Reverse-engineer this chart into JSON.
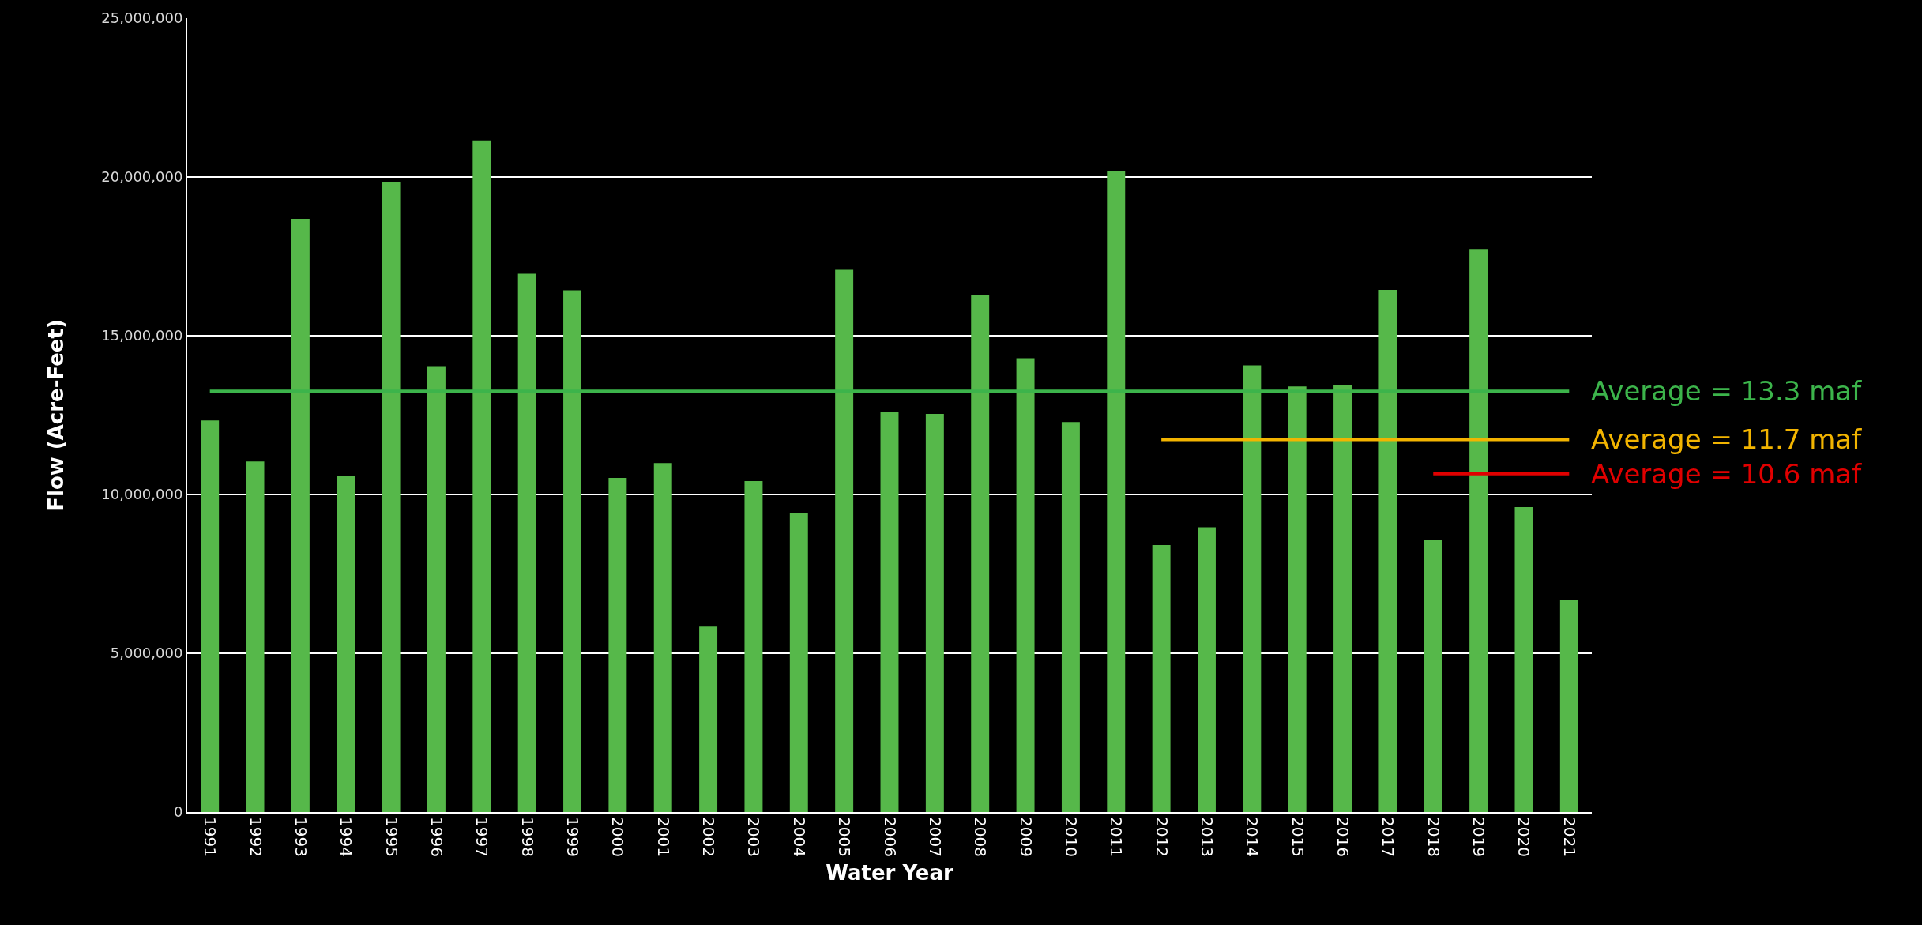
{
  "chart_data": {
    "type": "bar",
    "xlabel": "Water Year",
    "ylabel": "Flow (Acre-Feet)",
    "categories": [
      "1991",
      "1992",
      "1993",
      "1994",
      "1995",
      "1996",
      "1997",
      "1998",
      "1999",
      "2000",
      "2001",
      "2002",
      "2003",
      "2004",
      "2005",
      "2006",
      "2007",
      "2008",
      "2009",
      "2010",
      "2011",
      "2012",
      "2013",
      "2014",
      "2015",
      "2016",
      "2017",
      "2018",
      "2019",
      "2020",
      "2021"
    ],
    "series": [
      {
        "color": "#56b84a",
        "values": [
          12330000,
          11040000,
          18680000,
          10570000,
          19850000,
          14040000,
          21150000,
          16950000,
          16430000,
          10520000,
          10990000,
          5840000,
          10420000,
          9430000,
          17080000,
          12610000,
          12540000,
          16290000,
          14290000,
          12280000,
          20190000,
          8410000,
          8970000,
          14070000,
          13400000,
          13460000,
          16440000,
          8570000,
          17730000,
          9600000,
          6670000
        ]
      },
      {
        "type": "line",
        "name": "Average = 13.3 maf",
        "color": "#3cb44b",
        "values": [
          13250000,
          13250000,
          13250000,
          13250000,
          13250000,
          13250000,
          13250000,
          13250000,
          13250000,
          13250000,
          13250000,
          13250000,
          13250000,
          13250000,
          13250000,
          13250000,
          13250000,
          13250000,
          13250000,
          13250000,
          13250000,
          13250000,
          13250000,
          13250000,
          13250000,
          13250000,
          13250000,
          13250000,
          13250000,
          13250000,
          13250000
        ]
      },
      {
        "type": "line",
        "name": "Average = 11.7 maf",
        "color": "#f2b400",
        "values": [
          null,
          null,
          null,
          null,
          null,
          null,
          null,
          null,
          null,
          null,
          null,
          null,
          null,
          null,
          null,
          null,
          null,
          null,
          null,
          null,
          null,
          11730000,
          11730000,
          11730000,
          11730000,
          11730000,
          11730000,
          11730000,
          11730000,
          11730000,
          11730000
        ]
      },
      {
        "type": "line",
        "name": "Average = 10.6 maf",
        "color": "#e00000",
        "values": [
          null,
          null,
          null,
          null,
          null,
          null,
          null,
          null,
          null,
          null,
          null,
          null,
          null,
          null,
          null,
          null,
          null,
          null,
          null,
          null,
          null,
          null,
          null,
          null,
          null,
          null,
          null,
          10650000,
          10650000,
          10650000,
          10650000
        ]
      }
    ],
    "ylim": [
      0,
      25000000
    ],
    "yticks": [
      {
        "value": 0,
        "label": "0"
      },
      {
        "value": 5000000,
        "label": "5,000,000"
      },
      {
        "value": 10000000,
        "label": "10,000,000"
      },
      {
        "value": 15000000,
        "label": "15,000,000"
      },
      {
        "value": 20000000,
        "label": "20,000,000"
      },
      {
        "value": 25000000,
        "label": "25,000,000"
      }
    ],
    "grid": "y"
  }
}
